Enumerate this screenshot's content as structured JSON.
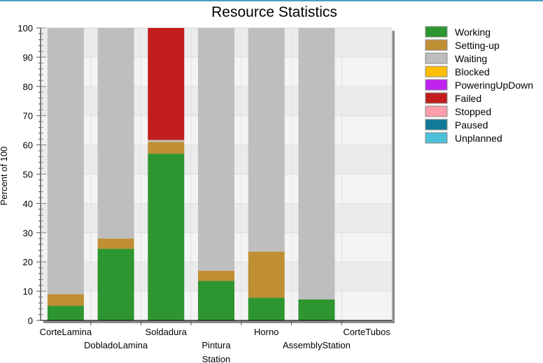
{
  "chart_data": {
    "type": "bar",
    "stacked": true,
    "title": "Resource Statistics",
    "ylabel": "Percent of 100",
    "xlabel": "",
    "ylim": [
      0,
      100
    ],
    "yticks": [
      0,
      10,
      20,
      30,
      40,
      50,
      60,
      70,
      80,
      90,
      100
    ],
    "grid": true,
    "legend_position": "right",
    "categories": [
      "CorteLamina",
      "DobladoLamina",
      "Soldadura",
      "Pintura Station",
      "Horno",
      "AssemblyStation",
      "CorteTubos"
    ],
    "series": [
      {
        "name": "Working",
        "color": "#2e9630",
        "values": [
          5,
          24.5,
          57,
          13.5,
          7.8,
          7.2,
          0
        ]
      },
      {
        "name": "Setting-up",
        "color": "#c08f33",
        "values": [
          4,
          3.5,
          4,
          3.5,
          15.7,
          0,
          0
        ]
      },
      {
        "name": "Waiting",
        "color": "#bebebe",
        "values": [
          91,
          72,
          0.7,
          83,
          76.5,
          92.8,
          0
        ]
      },
      {
        "name": "Blocked",
        "color": "#ffbf00",
        "values": [
          0,
          0,
          0,
          0,
          0,
          0,
          0
        ]
      },
      {
        "name": "PoweringUpDown",
        "color": "#c020f0",
        "values": [
          0,
          0,
          0,
          0,
          0,
          0,
          0
        ]
      },
      {
        "name": "Failed",
        "color": "#c21c1c",
        "values": [
          0,
          0,
          38.3,
          0,
          0,
          0,
          0
        ]
      },
      {
        "name": "Stopped",
        "color": "#ff9eaa",
        "values": [
          0,
          0,
          0,
          0,
          0,
          0,
          0
        ]
      },
      {
        "name": "Paused",
        "color": "#127a99",
        "values": [
          0,
          0,
          0,
          0,
          0,
          0,
          0
        ]
      },
      {
        "name": "Unplanned",
        "color": "#4dbfd9",
        "values": [
          0,
          0,
          0,
          0,
          0,
          0,
          0
        ]
      }
    ]
  }
}
